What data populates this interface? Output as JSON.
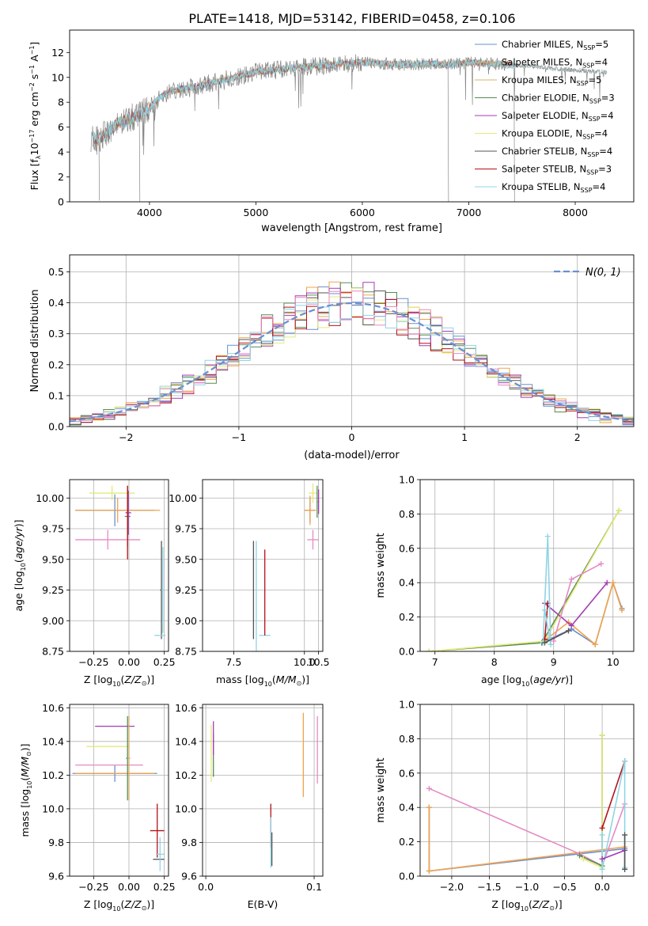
{
  "figure": {
    "title": "PLATE=1418, MJD=53142, FIBERID=0458, z=0.106"
  },
  "series_legend": [
    {
      "name": "Chabrier MILES, N",
      "sub": "SSP",
      "suffix": "=5",
      "color": "#6a8fd0"
    },
    {
      "name": "Salpeter MILES, N",
      "sub": "SSP",
      "suffix": "=4",
      "color": "#f2a34a"
    },
    {
      "name": "Kroupa MILES, N",
      "sub": "SSP",
      "suffix": "=5",
      "color": "#d8b36a"
    },
    {
      "name": "Chabrier ELODIE, N",
      "sub": "SSP",
      "suffix": "=3",
      "color": "#5a8a56"
    },
    {
      "name": "Salpeter ELODIE, N",
      "sub": "SSP",
      "suffix": "=4",
      "color": "#a33db2"
    },
    {
      "name": "Kroupa ELODIE, N",
      "sub": "SSP",
      "suffix": "=4",
      "color": "#e4ea7a"
    },
    {
      "name": "Chabrier STELIB, N",
      "sub": "SSP",
      "suffix": "=4",
      "color": "#555555"
    },
    {
      "name": "Salpeter STELIB, N",
      "sub": "SSP",
      "suffix": "=3",
      "color": "#b3121a"
    },
    {
      "name": "Kroupa STELIB, N",
      "sub": "SSP",
      "suffix": "=4",
      "color": "#8fd4e4"
    }
  ],
  "chart_data": [
    {
      "id": "spectrum",
      "type": "line",
      "xlabel": "wavelength [Angstrom, rest frame]",
      "ylabel_parts": [
        "Flux [f",
        "λ",
        "10",
        "−17",
        " erg cm",
        "−2",
        " s",
        "−1",
        " A",
        "−1",
        "]"
      ],
      "xlim": [
        3250,
        8550
      ],
      "ylim": [
        0,
        13.8
      ],
      "xticks": [
        4000,
        5000,
        6000,
        7000,
        8000
      ],
      "yticks": [
        0,
        2,
        4,
        6,
        8,
        10,
        12
      ],
      "observed_color": "#888888",
      "model_color": "#7fd3e0",
      "continuum_anchors": [
        [
          3450,
          5.2
        ],
        [
          3520,
          5.0
        ],
        [
          3600,
          5.6
        ],
        [
          3700,
          6.3
        ],
        [
          3800,
          6.6
        ],
        [
          3900,
          6.9
        ],
        [
          4000,
          7.6
        ],
        [
          4100,
          8.4
        ],
        [
          4200,
          8.9
        ],
        [
          4400,
          9.2
        ],
        [
          4600,
          9.6
        ],
        [
          4800,
          10.0
        ],
        [
          5000,
          10.4
        ],
        [
          5200,
          10.6
        ],
        [
          5400,
          10.8
        ],
        [
          5600,
          10.9
        ],
        [
          5800,
          11.1
        ],
        [
          6000,
          11.2
        ],
        [
          6200,
          11.1
        ],
        [
          6400,
          11.0
        ],
        [
          6600,
          11.1
        ],
        [
          6800,
          11.0
        ],
        [
          7000,
          11.2
        ],
        [
          7200,
          11.1
        ],
        [
          7400,
          11.0
        ],
        [
          7600,
          10.9
        ],
        [
          7800,
          10.7
        ],
        [
          8000,
          10.6
        ],
        [
          8300,
          10.4
        ]
      ],
      "models_xmax": 7420,
      "observed_xmax": 8300,
      "dips": [
        [
          3530,
          0.1
        ],
        [
          3910,
          0.0
        ],
        [
          6810,
          0.0
        ],
        [
          7430,
          0.0
        ]
      ]
    },
    {
      "id": "residuals",
      "type": "area",
      "xlabel": "(data-model)/error",
      "ylabel": "Normed distribution",
      "xlim": [
        -2.5,
        2.5
      ],
      "ylim": [
        0,
        0.555
      ],
      "xticks": [
        -2,
        -1,
        0,
        1,
        2
      ],
      "yticks": [
        0.0,
        0.1,
        0.2,
        0.3,
        0.4,
        0.5
      ],
      "bin_width": 0.1,
      "bin_start": -2.5,
      "legend": "N(0, 1)",
      "gaussian_color": "#6a8fd0",
      "histograms": [
        {
          "color": "#6a8fd0",
          "seed": 3
        },
        {
          "color": "#f2a34a",
          "seed": 7
        },
        {
          "color": "#5a8a56",
          "seed": 11
        },
        {
          "color": "#a33db2",
          "seed": 17
        },
        {
          "color": "#e4ea7a",
          "seed": 23
        },
        {
          "color": "#555555",
          "seed": 29
        },
        {
          "color": "#b3121a",
          "seed": 31
        },
        {
          "color": "#e58ac4",
          "seed": 37
        },
        {
          "color": "#8fd4e4",
          "seed": 41
        }
      ]
    },
    {
      "id": "age_vs_Z",
      "type": "scatter",
      "xlabel": "Z [log10(Z/Z⊙)]",
      "ylabel": "age [log10(age/yr)]",
      "xlim": [
        -0.42,
        0.28
      ],
      "ylim": [
        8.75,
        10.15
      ],
      "xticks": [
        -0.25,
        0.0,
        0.25
      ],
      "xtick_labels": [
        "−0.25",
        "0.00",
        "0.25"
      ],
      "yticks": [
        8.75,
        9.0,
        9.25,
        9.5,
        9.75,
        10.0
      ],
      "ytick_labels": [
        "8.75",
        "9.00",
        "9.25",
        "9.50",
        "9.75",
        "10.00"
      ],
      "points": [
        {
          "x": -0.1,
          "y": 9.9,
          "xerr": 0.28,
          "yerr": 0.13,
          "color": "#6a8fd0"
        },
        {
          "x": -0.08,
          "y": 9.9,
          "xerr": 0.3,
          "yerr": 0.1,
          "color": "#f2a34a"
        },
        {
          "x": -0.12,
          "y": 10.04,
          "xerr": 0.16,
          "yerr": 0.06,
          "color": "#e4ea7a"
        },
        {
          "x": -0.01,
          "y": 9.85,
          "xerr": 0.02,
          "yerr": 0.25,
          "color": "#5a8a56"
        },
        {
          "x": -0.005,
          "y": 9.88,
          "xerr": 0.02,
          "yerr": 0.18,
          "color": "#a33db2"
        },
        {
          "x": -0.15,
          "y": 9.66,
          "xerr": 0.23,
          "yerr": 0.08,
          "color": "#e58ac4"
        },
        {
          "x": 0.23,
          "y": 9.25,
          "xerr": 0.01,
          "yerr": 0.4,
          "color": "#555555"
        },
        {
          "x": 0.24,
          "y": 9.25,
          "xerr": 0.01,
          "yerr": 0.35,
          "color": "#8fd4e4"
        },
        {
          "x": 0.22,
          "y": 8.88,
          "xerr": 0.04,
          "yerr": 0.0,
          "color": "#8fd4e4"
        },
        {
          "x": -0.01,
          "y": 9.8,
          "xerr": 0.0,
          "yerr": 0.3,
          "color": "#b3121a"
        }
      ]
    },
    {
      "id": "age_vs_mass",
      "type": "scatter",
      "xlabel": "mass [log10(M/M⊙)]",
      "ylabel": "",
      "xlim": [
        6.4,
        10.65
      ],
      "ylim": [
        8.75,
        10.15
      ],
      "xticks": [
        7.5,
        10.0,
        10.5
      ],
      "xtick_labels": [
        "7.5",
        "10.0",
        "10.5"
      ],
      "yticks": [
        8.75,
        9.0,
        9.25,
        9.5,
        9.75,
        10.0
      ],
      "ytick_labels": [
        "8.75",
        "9.00",
        "9.25",
        "9.50",
        "9.75",
        "10.00"
      ],
      "points": [
        {
          "x": 10.2,
          "y": 9.9,
          "xerr": 0.2,
          "yerr": 0.1,
          "color": "#6a8fd0"
        },
        {
          "x": 10.2,
          "y": 9.9,
          "xerr": 0.2,
          "yerr": 0.12,
          "color": "#f2a34a"
        },
        {
          "x": 10.3,
          "y": 10.04,
          "xerr": 0.15,
          "yerr": 0.08,
          "color": "#e4ea7a"
        },
        {
          "x": 10.45,
          "y": 9.97,
          "xerr": 0.02,
          "yerr": 0.13,
          "color": "#5a8a56"
        },
        {
          "x": 10.5,
          "y": 9.97,
          "xerr": 0.02,
          "yerr": 0.1,
          "color": "#a33db2"
        },
        {
          "x": 10.3,
          "y": 9.66,
          "xerr": 0.2,
          "yerr": 0.08,
          "color": "#e58ac4"
        },
        {
          "x": 8.6,
          "y": 8.88,
          "xerr": 0.2,
          "yerr": 0.0,
          "color": "#8fd4e4"
        },
        {
          "x": 8.6,
          "y": 9.23,
          "xerr": 0.0,
          "yerr": 0.35,
          "color": "#b3121a"
        },
        {
          "x": 8.2,
          "y": 9.25,
          "xerr": 0.0,
          "yerr": 0.4,
          "color": "#555555"
        },
        {
          "x": 8.3,
          "y": 9.2,
          "xerr": 0.0,
          "yerr": 0.45,
          "color": "#8fd4e4"
        }
      ]
    },
    {
      "id": "weight_vs_age",
      "type": "line",
      "xlabel": "age [log10(age/yr)]",
      "ylabel": "mass weight",
      "xlim": [
        6.75,
        10.35
      ],
      "ylim": [
        0,
        1.0
      ],
      "xticks": [
        7,
        8,
        9,
        10
      ],
      "yticks": [
        0.0,
        0.2,
        0.4,
        0.6,
        0.8,
        1.0
      ],
      "series": [
        {
          "color": "#6a8fd0",
          "x": [
            8.8,
            9.3,
            9.7,
            10.0,
            10.15
          ],
          "y": [
            0.05,
            0.13,
            0.04,
            0.4,
            0.25
          ]
        },
        {
          "color": "#f2a34a",
          "x": [
            8.8,
            9.25,
            9.7,
            10.0,
            10.15
          ],
          "y": [
            0.05,
            0.17,
            0.04,
            0.4,
            0.24
          ]
        },
        {
          "color": "#5a8a56",
          "x": [
            6.9,
            8.8,
            10.1
          ],
          "y": [
            0.0,
            0.05,
            0.82
          ]
        },
        {
          "color": "#e4ea7a",
          "x": [
            6.9,
            8.85,
            10.1
          ],
          "y": [
            0.0,
            0.06,
            0.82
          ]
        },
        {
          "color": "#a33db2",
          "x": [
            8.85,
            9.3,
            9.9
          ],
          "y": [
            0.28,
            0.15,
            0.4
          ]
        },
        {
          "color": "#b3121a",
          "x": [
            8.85,
            8.9
          ],
          "y": [
            0.07,
            0.28
          ]
        },
        {
          "color": "#e58ac4",
          "x": [
            9.0,
            9.3,
            9.8
          ],
          "y": [
            0.06,
            0.42,
            0.51
          ]
        },
        {
          "color": "#8fd4e4",
          "x": [
            8.82,
            8.9,
            8.95,
            8.85
          ],
          "y": [
            0.05,
            0.67,
            0.04,
            0.24
          ]
        },
        {
          "color": "#555555",
          "x": [
            8.85,
            9.25
          ],
          "y": [
            0.05,
            0.12
          ]
        }
      ]
    },
    {
      "id": "mass_vs_Z",
      "type": "scatter",
      "xlabel": "Z [log10(Z/Z⊙)]",
      "ylabel": "mass [log10(M/M⊙)]",
      "xlim": [
        -0.42,
        0.28
      ],
      "ylim": [
        9.6,
        10.62
      ],
      "xticks": [
        -0.25,
        0.0,
        0.25
      ],
      "xtick_labels": [
        "−0.25",
        "0.00",
        "0.25"
      ],
      "yticks": [
        9.6,
        9.8,
        10.0,
        10.2,
        10.4,
        10.6
      ],
      "ytick_labels": [
        "9.6",
        "9.8",
        "10.0",
        "10.2",
        "10.4",
        "10.6"
      ],
      "points": [
        {
          "x": -0.1,
          "y": 10.21,
          "xerr": 0.3,
          "yerr": 0.05,
          "color": "#6a8fd0"
        },
        {
          "x": -0.1,
          "y": 10.21,
          "xerr": 0.28,
          "yerr": 0.0,
          "color": "#f2a34a"
        },
        {
          "x": -0.15,
          "y": 10.37,
          "xerr": 0.15,
          "yerr": 0.0,
          "color": "#e4ea7a"
        },
        {
          "x": -0.1,
          "y": 10.49,
          "xerr": 0.14,
          "yerr": 0.0,
          "color": "#a33db2"
        },
        {
          "x": -0.14,
          "y": 10.26,
          "xerr": 0.24,
          "yerr": 0.0,
          "color": "#e58ac4"
        },
        {
          "x": -0.01,
          "y": 10.3,
          "xerr": 0.01,
          "yerr": 0.25,
          "color": "#5a8a56"
        },
        {
          "x": 0.0,
          "y": 10.3,
          "xerr": 0.01,
          "yerr": 0.25,
          "color": "#d8b36a"
        },
        {
          "x": 0.2,
          "y": 9.87,
          "xerr": 0.05,
          "yerr": 0.16,
          "color": "#b3121a"
        },
        {
          "x": 0.21,
          "y": 9.7,
          "xerr": 0.04,
          "yerr": 0.0,
          "color": "#555555"
        },
        {
          "x": 0.22,
          "y": 9.73,
          "xerr": 0.03,
          "yerr": 0.1,
          "color": "#8fd4e4"
        }
      ]
    },
    {
      "id": "mass_vs_ebv",
      "type": "scatter",
      "xlabel": "E(B-V)",
      "ylabel": "",
      "xlim": [
        -0.003,
        0.108
      ],
      "ylim": [
        9.6,
        10.62
      ],
      "xticks": [
        0.0,
        0.1
      ],
      "xtick_labels": [
        "0.0",
        "0.1"
      ],
      "yticks": [
        9.6,
        9.8,
        10.0,
        10.2,
        10.4,
        10.6
      ],
      "ytick_labels": [
        "9.6",
        "9.8",
        "10.0",
        "10.2",
        "10.4",
        "10.6"
      ],
      "points": [
        {
          "x": 0.005,
          "y": 10.33,
          "xerr": 0.0,
          "yerr": 0.17,
          "color": "#e4ea7a"
        },
        {
          "x": 0.007,
          "y": 10.32,
          "xerr": 0.0,
          "yerr": 0.13,
          "color": "#5a8a56"
        },
        {
          "x": 0.007,
          "y": 10.42,
          "xerr": 0.0,
          "yerr": 0.1,
          "color": "#a33db2"
        },
        {
          "x": 0.06,
          "y": 9.9,
          "xerr": 0.0,
          "yerr": 0.13,
          "color": "#b3121a"
        },
        {
          "x": 0.06,
          "y": 9.8,
          "xerr": 0.0,
          "yerr": 0.15,
          "color": "#8fd4e4"
        },
        {
          "x": 0.061,
          "y": 9.76,
          "xerr": 0.0,
          "yerr": 0.1,
          "color": "#555555"
        },
        {
          "x": 0.09,
          "y": 10.32,
          "xerr": 0.0,
          "yerr": 0.25,
          "color": "#f2a34a"
        },
        {
          "x": 0.103,
          "y": 10.35,
          "xerr": 0.0,
          "yerr": 0.2,
          "color": "#e58ac4"
        }
      ]
    },
    {
      "id": "weight_vs_Z",
      "type": "line",
      "xlabel": "Z [log10(Z/Z⊙)]",
      "ylabel": "mass weight",
      "xlim": [
        -2.42,
        0.42
      ],
      "ylim": [
        0,
        1.0
      ],
      "xticks": [
        -2.0,
        -1.5,
        -1.0,
        -0.5,
        0.0
      ],
      "xtick_labels": [
        "−2.0",
        "−1.5",
        "−1.0",
        "−0.5",
        "0.0"
      ],
      "yticks": [
        0.0,
        0.2,
        0.4,
        0.6,
        0.8,
        1.0
      ],
      "series": [
        {
          "color": "#6a8fd0",
          "x": [
            -2.3,
            -2.3,
            0.3,
            0.3
          ],
          "y": [
            0.4,
            0.03,
            0.16,
            0.04
          ]
        },
        {
          "color": "#f2a34a",
          "x": [
            -2.3,
            -2.3,
            0.3
          ],
          "y": [
            0.4,
            0.03,
            0.17
          ]
        },
        {
          "color": "#e58ac4",
          "x": [
            -2.3,
            -0.3,
            0.0,
            0.3
          ],
          "y": [
            0.51,
            0.13,
            0.06,
            0.42
          ]
        },
        {
          "color": "#5a8a56",
          "x": [
            -0.3,
            0.0,
            0.0
          ],
          "y": [
            0.12,
            0.06,
            0.82
          ]
        },
        {
          "color": "#e4ea7a",
          "x": [
            -0.25,
            0.0,
            0.0
          ],
          "y": [
            0.1,
            0.05,
            0.82
          ]
        },
        {
          "color": "#b3121a",
          "x": [
            0.0,
            0.3
          ],
          "y": [
            0.28,
            0.67
          ]
        },
        {
          "color": "#8fd4e4",
          "x": [
            0.0,
            0.0,
            0.3,
            0.3
          ],
          "y": [
            0.24,
            0.04,
            0.67,
            0.05
          ]
        },
        {
          "color": "#a33db2",
          "x": [
            0.0,
            0.3
          ],
          "y": [
            0.1,
            0.15
          ]
        },
        {
          "color": "#555555",
          "x": [
            0.3,
            0.3
          ],
          "y": [
            0.04,
            0.24
          ]
        }
      ]
    }
  ]
}
